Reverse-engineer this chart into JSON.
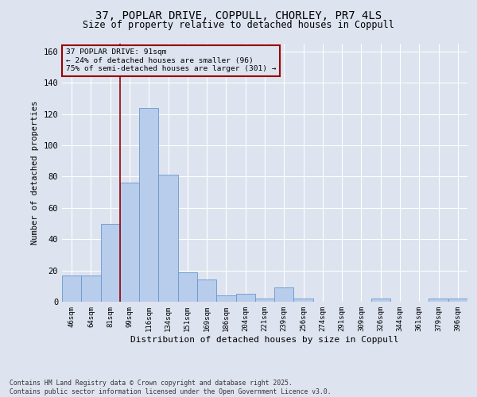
{
  "title_line1": "37, POPLAR DRIVE, COPPULL, CHORLEY, PR7 4LS",
  "title_line2": "Size of property relative to detached houses in Coppull",
  "xlabel": "Distribution of detached houses by size in Coppull",
  "ylabel": "Number of detached properties",
  "footnote1": "Contains HM Land Registry data © Crown copyright and database right 2025.",
  "footnote2": "Contains public sector information licensed under the Open Government Licence v3.0.",
  "annotation_line1": "37 POPLAR DRIVE: 91sqm",
  "annotation_line2": "← 24% of detached houses are smaller (96)",
  "annotation_line3": "75% of semi-detached houses are larger (301) →",
  "bar_color": "#b8cceb",
  "bar_edge_color": "#6699cc",
  "background_color": "#dde3ef",
  "grid_color": "#ffffff",
  "vline_color": "#990000",
  "annotation_box_edgecolor": "#990000",
  "categories": [
    "46sqm",
    "64sqm",
    "81sqm",
    "99sqm",
    "116sqm",
    "134sqm",
    "151sqm",
    "169sqm",
    "186sqm",
    "204sqm",
    "221sqm",
    "239sqm",
    "256sqm",
    "274sqm",
    "291sqm",
    "309sqm",
    "326sqm",
    "344sqm",
    "361sqm",
    "379sqm",
    "396sqm"
  ],
  "values": [
    17,
    17,
    50,
    76,
    124,
    81,
    19,
    14,
    4,
    5,
    2,
    9,
    2,
    0,
    0,
    0,
    2,
    0,
    0,
    2,
    2
  ],
  "ylim": [
    0,
    165
  ],
  "yticks": [
    0,
    20,
    40,
    60,
    80,
    100,
    120,
    140,
    160
  ],
  "vline_x_index": 2.5,
  "figsize": [
    6.0,
    5.0
  ],
  "dpi": 100
}
